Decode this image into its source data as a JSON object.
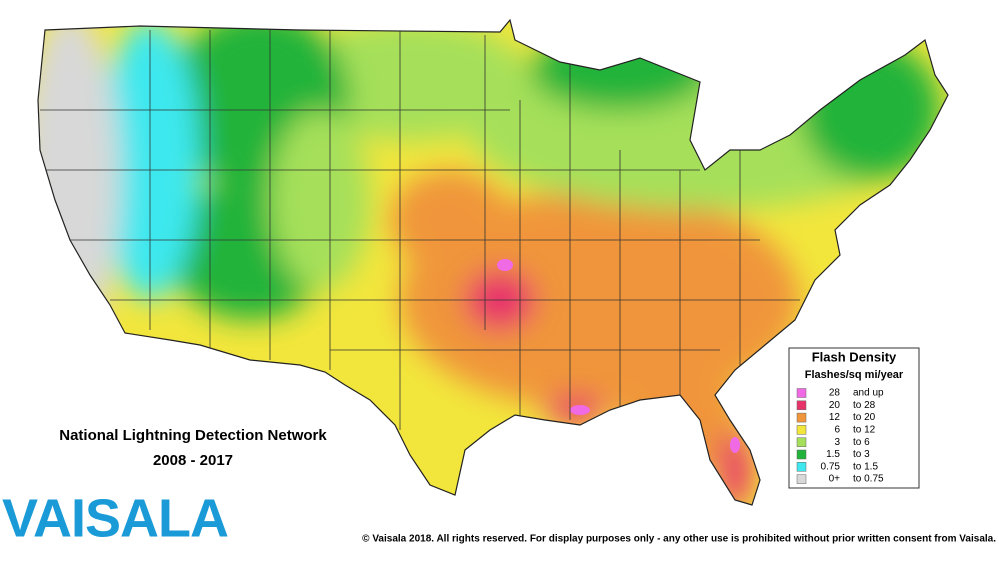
{
  "title": "National Lightning Detection Network",
  "subtitle": "2008 - 2017",
  "logo": "VAISALA",
  "copyright": "© Vaisala 2018. All rights reserved. For display purposes only - any other use is prohibited without prior written consent from Vaisala.",
  "legend": {
    "title": "Flash Density",
    "subtitle": "Flashes/sq mi/year",
    "items": [
      {
        "from": "28",
        "to": "and up",
        "color": "#f06ae6"
      },
      {
        "from": "20",
        "to": "to 28",
        "color": "#e8336a"
      },
      {
        "from": "12",
        "to": "to 20",
        "color": "#f0953a"
      },
      {
        "from": "6",
        "to": "to 12",
        "color": "#f2e63c"
      },
      {
        "from": "3",
        "to": "to 6",
        "color": "#a6e05a"
      },
      {
        "from": "1.5",
        "to": "to 3",
        "color": "#22b33a"
      },
      {
        "from": "0.75",
        "to": "to 1.5",
        "color": "#3ee8ee"
      },
      {
        "from": "0+",
        "to": "to 0.75",
        "color": "#d8d8d8"
      }
    ]
  }
}
